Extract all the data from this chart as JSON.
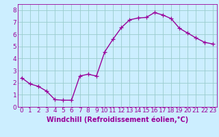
{
  "x": [
    0,
    1,
    2,
    3,
    4,
    5,
    6,
    7,
    8,
    9,
    10,
    11,
    12,
    13,
    14,
    15,
    16,
    17,
    18,
    19,
    20,
    21,
    22,
    23
  ],
  "y": [
    2.4,
    1.9,
    1.7,
    1.3,
    0.6,
    0.55,
    0.55,
    2.55,
    2.7,
    2.55,
    4.55,
    5.6,
    6.55,
    7.2,
    7.35,
    7.4,
    7.8,
    7.6,
    7.3,
    6.5,
    6.1,
    5.7,
    5.35,
    5.2
  ],
  "line_color": "#990099",
  "bg_color": "#cceeff",
  "grid_color": "#99cccc",
  "xlabel": "Windchill (Refroidissement éolien,°C)",
  "xlim": [
    -0.5,
    23.5
  ],
  "ylim": [
    0,
    8.5
  ],
  "ytick_values": [
    0,
    1,
    2,
    3,
    4,
    5,
    6,
    7,
    8
  ],
  "marker": "+",
  "marker_size": 4,
  "line_width": 1.0,
  "font_size": 6.5
}
